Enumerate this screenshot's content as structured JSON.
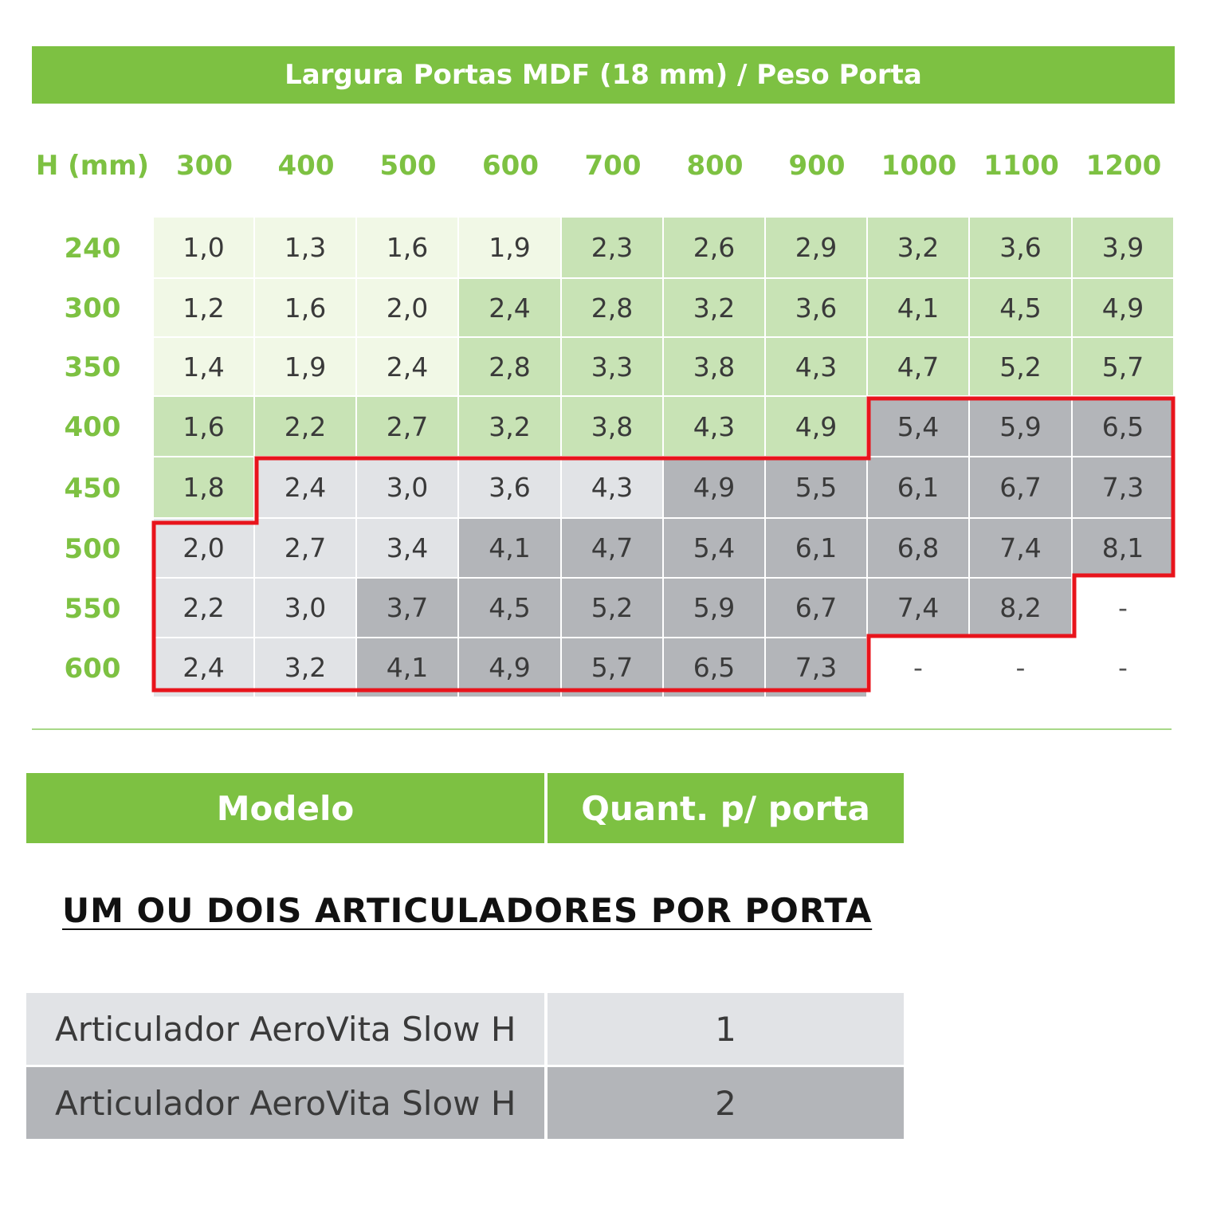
{
  "title": "Largura Portas MDF (18 mm) / Peso Porta",
  "corner_label": "H (mm)",
  "widths": [
    "300",
    "400",
    "500",
    "600",
    "700",
    "800",
    "900",
    "1000",
    "1100",
    "1200"
  ],
  "heights": [
    "240",
    "300",
    "350",
    "400",
    "450",
    "500",
    "550",
    "600"
  ],
  "rows": [
    [
      "1,0",
      "1,3",
      "1,6",
      "1,9",
      "2,3",
      "2,6",
      "2,9",
      "3,2",
      "3,6",
      "3,9"
    ],
    [
      "1,2",
      "1,6",
      "2,0",
      "2,4",
      "2,8",
      "3,2",
      "3,6",
      "4,1",
      "4,5",
      "4,9"
    ],
    [
      "1,4",
      "1,9",
      "2,4",
      "2,8",
      "3,3",
      "3,8",
      "4,3",
      "4,7",
      "5,2",
      "5,7"
    ],
    [
      "1,6",
      "2,2",
      "2,7",
      "3,2",
      "3,8",
      "4,3",
      "4,9",
      "5,4",
      "5,9",
      "6,5"
    ],
    [
      "1,8",
      "2,4",
      "3,0",
      "3,6",
      "4,3",
      "4,9",
      "5,5",
      "6,1",
      "6,7",
      "7,3"
    ],
    [
      "2,0",
      "2,7",
      "3,4",
      "4,1",
      "4,7",
      "5,4",
      "6,1",
      "6,8",
      "7,4",
      "8,1"
    ],
    [
      "2,2",
      "3,0",
      "3,7",
      "4,5",
      "5,2",
      "5,9",
      "6,7",
      "7,4",
      "8,2",
      "-"
    ],
    [
      "2,4",
      "3,2",
      "4,1",
      "4,9",
      "5,7",
      "6,5",
      "7,3",
      "-",
      "-",
      "-"
    ]
  ],
  "shade": [
    [
      0,
      0,
      0,
      0,
      1,
      1,
      1,
      1,
      1,
      1
    ],
    [
      0,
      0,
      0,
      1,
      1,
      1,
      1,
      1,
      1,
      1
    ],
    [
      0,
      0,
      0,
      1,
      1,
      1,
      1,
      1,
      1,
      1
    ],
    [
      1,
      1,
      1,
      1,
      1,
      1,
      1,
      3,
      3,
      3
    ],
    [
      1,
      2,
      2,
      2,
      2,
      3,
      3,
      3,
      3,
      3
    ],
    [
      2,
      2,
      2,
      3,
      3,
      3,
      3,
      3,
      3,
      3
    ],
    [
      2,
      2,
      3,
      3,
      3,
      3,
      3,
      3,
      3,
      4
    ],
    [
      2,
      2,
      3,
      3,
      3,
      3,
      3,
      4,
      4,
      4
    ]
  ],
  "colors": {
    "green": "#7dc142",
    "pale_green": "#f1f8e6",
    "light_green": "#c8e3b5",
    "light_gray": "#e1e3e6",
    "dark_gray": "#b3b5b9",
    "highlight": "#e8141c"
  },
  "model_table": {
    "col1": "Modelo",
    "col2": "Quant. p/ porta",
    "note": "UM OU DOIS ARTICULADORES POR PORTA",
    "rows": [
      {
        "model": "Articulador AeroVita Slow H",
        "qty": "1"
      },
      {
        "model": "Articulador AeroVita Slow H",
        "qty": "2"
      }
    ]
  }
}
